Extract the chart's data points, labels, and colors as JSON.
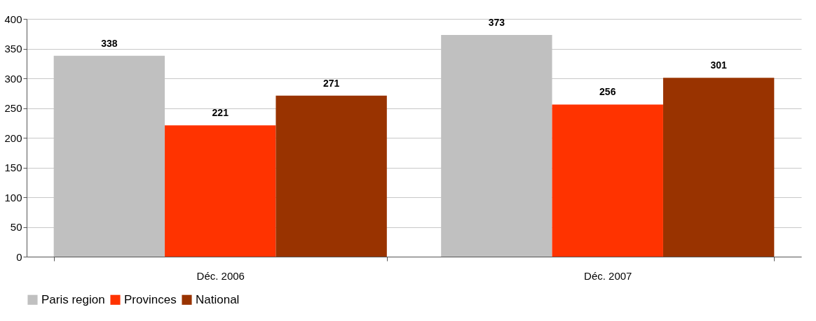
{
  "chart_data": {
    "type": "bar",
    "categories": [
      "Déc. 2006",
      "Déc. 2007"
    ],
    "series": [
      {
        "name": "Paris region",
        "color": "#c0c0c0",
        "values": [
          338,
          373
        ]
      },
      {
        "name": "Provinces",
        "color": "#ff3300",
        "values": [
          221,
          256
        ]
      },
      {
        "name": "National",
        "color": "#993300",
        "values": [
          271,
          301
        ]
      }
    ],
    "ylim": [
      0,
      400
    ],
    "yticks": [
      0,
      50,
      100,
      150,
      200,
      250,
      300,
      350,
      400
    ],
    "grid": "y",
    "legend": "bottom",
    "data_labels": true
  }
}
